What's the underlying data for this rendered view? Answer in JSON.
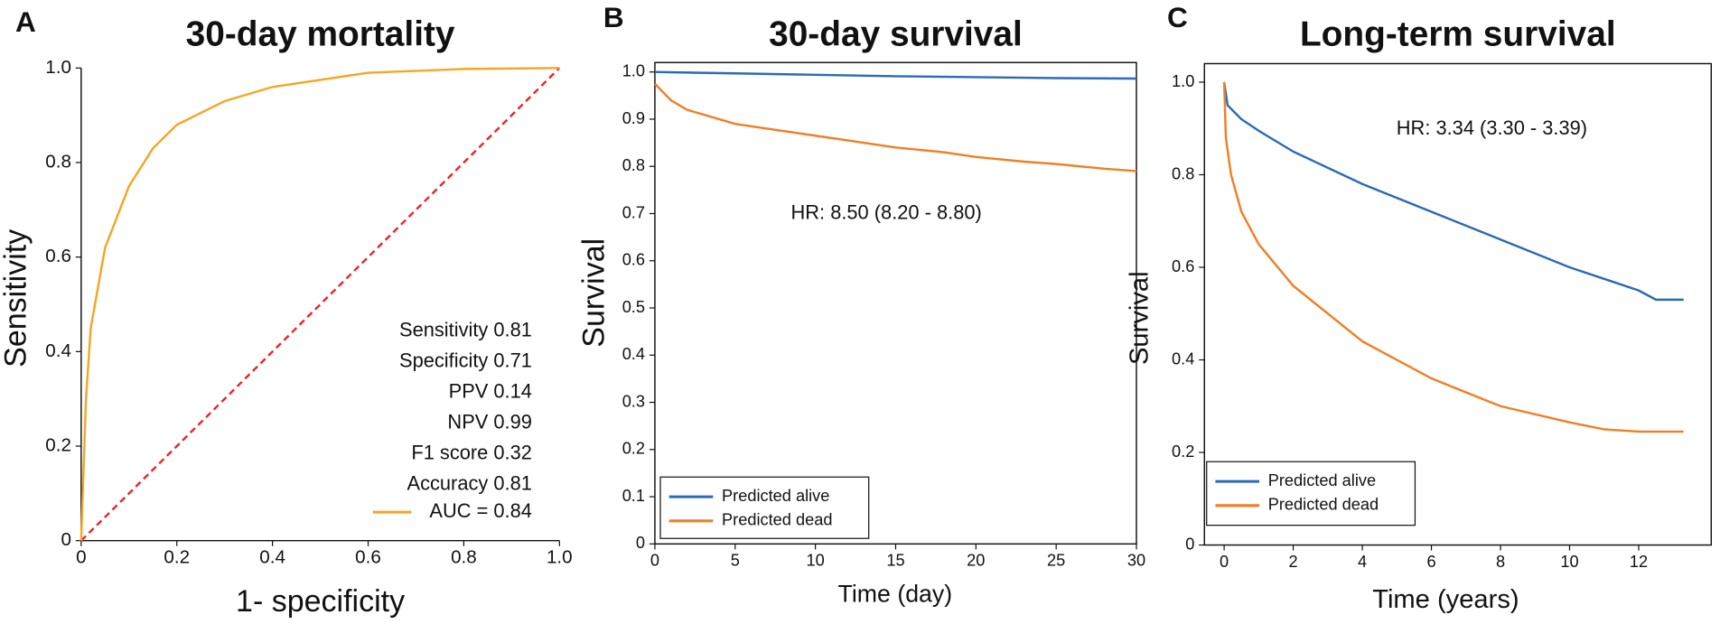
{
  "chart_data": [
    {
      "type": "line",
      "panel": "A",
      "title": "30-day mortality",
      "xlabel": "1- specificity",
      "ylabel": "Sensitivity",
      "xlim": [
        0,
        1
      ],
      "ylim": [
        0,
        1
      ],
      "xticks": [
        0,
        0.2,
        0.4,
        0.6,
        0.8,
        {
          "value": 1,
          "label": "1.0"
        }
      ],
      "yticks": [
        0,
        0.2,
        0.4,
        0.6,
        0.8,
        {
          "value": 1,
          "label": "1.0"
        }
      ],
      "series": [
        {
          "name": "AUC = 0.84",
          "color": "#f5a623",
          "x": [
            0,
            0.01,
            0.02,
            0.05,
            0.1,
            0.15,
            0.2,
            0.3,
            0.4,
            0.5,
            0.6,
            0.8,
            1
          ],
          "values": [
            0,
            0.3,
            0.45,
            0.62,
            0.75,
            0.83,
            0.88,
            0.93,
            0.96,
            0.975,
            0.99,
            0.998,
            1
          ]
        }
      ],
      "reference_line": {
        "x": [
          0,
          1
        ],
        "values": [
          0,
          1
        ],
        "color": "#e8262a"
      },
      "annotations": [
        "Sensitivity 0.81",
        "Specificity 0.71",
        "PPV 0.14",
        "NPV 0.99",
        "F1 score 0.32",
        "Accuracy 0.81"
      ]
    },
    {
      "type": "line",
      "panel": "B",
      "title": "30-day survival",
      "xlabel": "Time (day)",
      "ylabel": "Survival",
      "xlim": [
        0,
        30
      ],
      "ylim": [
        0,
        1.02
      ],
      "xticks": [
        0,
        5,
        10,
        15,
        20,
        25,
        30
      ],
      "yticks": [
        0,
        0.1,
        0.2,
        0.3,
        0.4,
        0.5,
        0.6,
        0.7,
        0.8,
        0.9,
        {
          "value": 1,
          "label": "1.0"
        }
      ],
      "series": [
        {
          "name": "Predicted alive",
          "color": "#2a6ab8",
          "x": [
            0,
            5,
            10,
            15,
            20,
            25,
            30
          ],
          "values": [
            1.0,
            0.997,
            0.994,
            0.991,
            0.989,
            0.987,
            0.986
          ]
        },
        {
          "name": "Predicted dead",
          "color": "#f07f24",
          "x": [
            0,
            1,
            2,
            3,
            4,
            5,
            6,
            8,
            10,
            12,
            15,
            18,
            20,
            23,
            25,
            28,
            30
          ],
          "values": [
            0.975,
            0.94,
            0.92,
            0.91,
            0.9,
            0.89,
            0.885,
            0.875,
            0.865,
            0.855,
            0.84,
            0.83,
            0.82,
            0.81,
            0.805,
            0.795,
            0.79
          ]
        }
      ],
      "annotations": [
        "HR: 8.50 (8.20 - 8.80)"
      ]
    },
    {
      "type": "line",
      "panel": "C",
      "title": "Long-term survival",
      "xlabel": "Time (years)",
      "ylabel": "Survival",
      "xlim": [
        -0.57,
        14.1
      ],
      "ylim": [
        0,
        1.04
      ],
      "xticks": [
        0,
        2,
        4,
        6,
        8,
        10,
        12
      ],
      "yticks": [
        0,
        0.2,
        0.4,
        0.6,
        0.8,
        {
          "value": 1,
          "label": "1.0"
        }
      ],
      "series": [
        {
          "name": "Predicted alive",
          "color": "#2a6ab8",
          "x": [
            0,
            0.1,
            0.5,
            1,
            2,
            4,
            6,
            8,
            10,
            11,
            12,
            12.5,
            13.3
          ],
          "values": [
            1.0,
            0.95,
            0.92,
            0.895,
            0.85,
            0.78,
            0.72,
            0.66,
            0.6,
            0.575,
            0.55,
            0.53,
            0.53
          ]
        },
        {
          "name": "Predicted dead",
          "color": "#f07f24",
          "x": [
            0,
            0.05,
            0.2,
            0.5,
            1,
            2,
            4,
            6,
            8,
            10,
            11,
            12,
            13.3
          ],
          "values": [
            1.0,
            0.88,
            0.8,
            0.72,
            0.65,
            0.56,
            0.44,
            0.36,
            0.3,
            0.265,
            0.25,
            0.245,
            0.245
          ]
        }
      ],
      "annotations": [
        "HR: 3.34 (3.30 - 3.39)"
      ]
    }
  ]
}
